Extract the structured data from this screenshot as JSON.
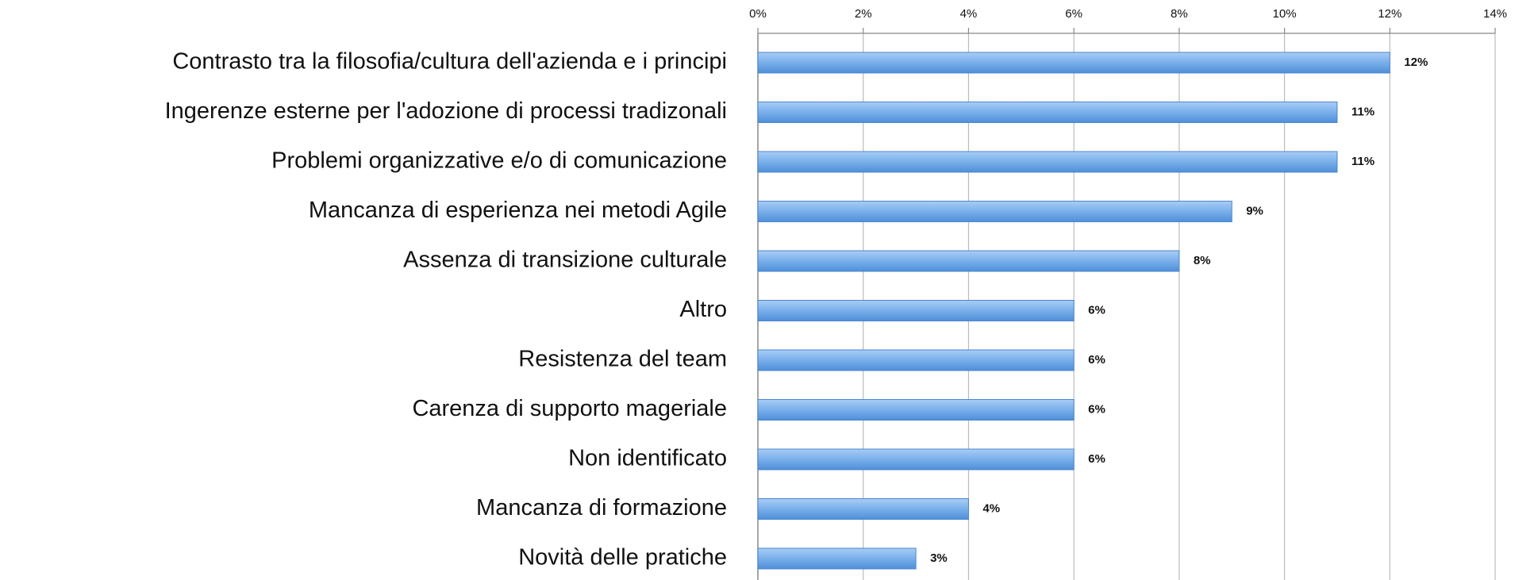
{
  "chart_data": {
    "type": "bar",
    "orientation": "horizontal",
    "categories": [
      "Contrasto tra la filosofia/cultura dell'azienda e i principi",
      "Ingerenze esterne per l'adozione di processi tradizonali",
      "Problemi organizzative e/o di comunicazione",
      "Mancanza di esperienza nei metodi Agile",
      "Assenza di transizione culturale",
      "Altro",
      "Resistenza del team",
      "Carenza di supporto mageriale",
      "Non identificato",
      "Mancanza di formazione",
      "Novità delle pratiche"
    ],
    "values": [
      12,
      11,
      11,
      9,
      8,
      6,
      6,
      6,
      6,
      4,
      3
    ],
    "value_labels": [
      "12%",
      "11%",
      "11%",
      "9%",
      "8%",
      "6%",
      "6%",
      "6%",
      "6%",
      "4%",
      "3%"
    ],
    "color": "#6fa6e6",
    "xlim": [
      0,
      14
    ],
    "xticks": [
      {
        "value": 0,
        "label": "0%"
      },
      {
        "value": 2,
        "label": "2%"
      },
      {
        "value": 4,
        "label": "4%"
      },
      {
        "value": 6,
        "label": "6%"
      },
      {
        "value": 8,
        "label": "8%"
      },
      {
        "value": 10,
        "label": "10%"
      },
      {
        "value": 12,
        "label": "12%"
      },
      {
        "value": 14,
        "label": "14%"
      }
    ],
    "grid": true
  }
}
